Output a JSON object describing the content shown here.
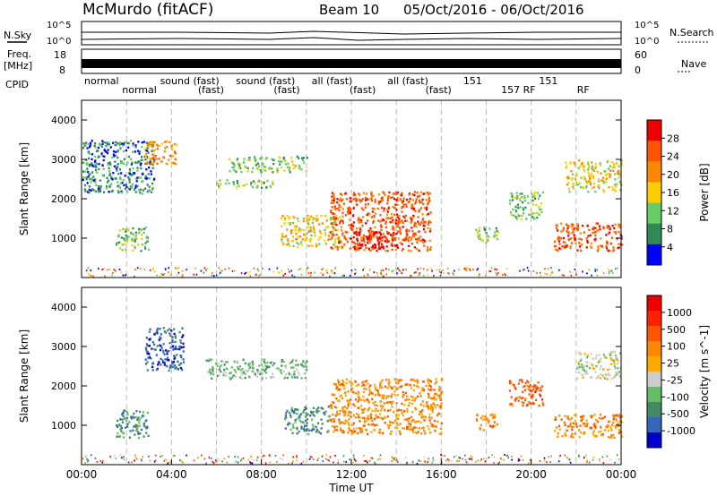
{
  "header": {
    "station": "McMurdo (fitACF)",
    "beam": "Beam 10",
    "date_range": "05/Oct/2016 - 06/Oct/2016"
  },
  "top_panels": {
    "nsky_label": "N.Sky",
    "nsearch_label": "N.Search",
    "noise_ticks": [
      "10^5",
      "10^0"
    ],
    "freq_label_1": "Freq.",
    "freq_label_2": "[MHz]",
    "freq_ticks": [
      "18",
      "8"
    ],
    "nave_label": "Nave",
    "nave_ticks": [
      "60",
      "0"
    ],
    "cpid_label": "CPID",
    "cpid_tokens": [
      "normal",
      "normal",
      "sound (fast)",
      "(fast)",
      "sound (fast)",
      "(fast)",
      "all (fast)",
      "(fast)",
      "all (fast)",
      "(fast)",
      "151",
      "157 RF",
      "151",
      "RF"
    ]
  },
  "colors": {
    "power_scale": [
      "#0000ff",
      "#2e8b57",
      "#66cc66",
      "#ffcc00",
      "#ff8800",
      "#ff5500",
      "#ee0000"
    ],
    "velocity_scale": [
      "#0000cc",
      "#3366bb",
      "#448866",
      "#66bb66",
      "#cccccc",
      "#ffaa00",
      "#ff8800",
      "#ff5500",
      "#ff2200",
      "#ee0000"
    ]
  },
  "chart_data": [
    {
      "type": "heatmap",
      "title": "Power",
      "xlabel": "Time UT",
      "ylabel": "Slant Range [km]",
      "colorbar_label": "Power [dB]",
      "colorbar_ticks": [
        "28",
        "24",
        "20",
        "16",
        "12",
        "8",
        "4"
      ],
      "xlim": [
        0,
        24
      ],
      "ylim": [
        0,
        4500
      ],
      "yticks": [
        "1000",
        "2000",
        "3000",
        "4000"
      ],
      "grid": "dashed vertical every 2 h",
      "echo_regions": [
        {
          "t0": 0.0,
          "t1": 3.2,
          "r0": 2150,
          "r1": 3500,
          "level": 1
        },
        {
          "t0": 2.8,
          "t1": 4.2,
          "r0": 2900,
          "r1": 3500,
          "level": 4
        },
        {
          "t0": 1.5,
          "t1": 3.0,
          "r0": 700,
          "r1": 1300,
          "level": 2
        },
        {
          "t0": 6.0,
          "t1": 8.5,
          "r0": 2300,
          "r1": 2500,
          "level": 2
        },
        {
          "t0": 6.5,
          "t1": 10.0,
          "r0": 2700,
          "r1": 3100,
          "level": 2
        },
        {
          "t0": 8.8,
          "t1": 11.5,
          "r0": 800,
          "r1": 1600,
          "level": 3
        },
        {
          "t0": 11.0,
          "t1": 15.5,
          "r0": 700,
          "r1": 2200,
          "level": 5
        },
        {
          "t0": 12.0,
          "t1": 14.0,
          "r0": 750,
          "r1": 1200,
          "level": 6
        },
        {
          "t0": 17.5,
          "t1": 18.5,
          "r0": 900,
          "r1": 1300,
          "level": 2
        },
        {
          "t0": 19.0,
          "t1": 20.5,
          "r0": 1500,
          "r1": 2200,
          "level": 2
        },
        {
          "t0": 21.0,
          "t1": 24.0,
          "r0": 700,
          "r1": 1400,
          "level": 5
        },
        {
          "t0": 21.5,
          "t1": 24.0,
          "r0": 2200,
          "r1": 3000,
          "level": 3
        }
      ]
    },
    {
      "type": "heatmap",
      "title": "Velocity",
      "xlabel": "Time UT",
      "ylabel": "Slant Range [km]",
      "colorbar_label": "Velocity [m s^-1]",
      "colorbar_ticks": [
        "1000",
        "500",
        "100",
        "25",
        "-25",
        "-100",
        "-500",
        "-1000"
      ],
      "xlim": [
        0,
        24
      ],
      "ylim": [
        0,
        4500
      ],
      "yticks": [
        "1000",
        "2000",
        "3000",
        "4000"
      ],
      "grid": "dashed vertical every 2 h",
      "echo_regions": [
        {
          "t0": 2.8,
          "t1": 4.5,
          "r0": 2400,
          "r1": 3500,
          "level": 1
        },
        {
          "t0": 1.5,
          "t1": 3.0,
          "r0": 700,
          "r1": 1400,
          "level": 2
        },
        {
          "t0": 5.5,
          "t1": 10.0,
          "r0": 2200,
          "r1": 2700,
          "level": 3
        },
        {
          "t0": 9.0,
          "t1": 11.0,
          "r0": 800,
          "r1": 1500,
          "level": 2
        },
        {
          "t0": 11.0,
          "t1": 16.0,
          "r0": 800,
          "r1": 2200,
          "level": 6
        },
        {
          "t0": 17.5,
          "t1": 18.5,
          "r0": 900,
          "r1": 1300,
          "level": 6
        },
        {
          "t0": 19.0,
          "t1": 20.5,
          "r0": 1500,
          "r1": 2200,
          "level": 7
        },
        {
          "t0": 21.0,
          "t1": 24.0,
          "r0": 700,
          "r1": 1300,
          "level": 6
        },
        {
          "t0": 22.0,
          "t1": 24.0,
          "r0": 2200,
          "r1": 2900,
          "level": 4
        }
      ]
    }
  ],
  "x_axis": {
    "ticks": [
      "00:00",
      "04:00",
      "08:00",
      "12:00",
      "16:00",
      "20:00",
      "00:00"
    ],
    "label": "Time UT"
  }
}
